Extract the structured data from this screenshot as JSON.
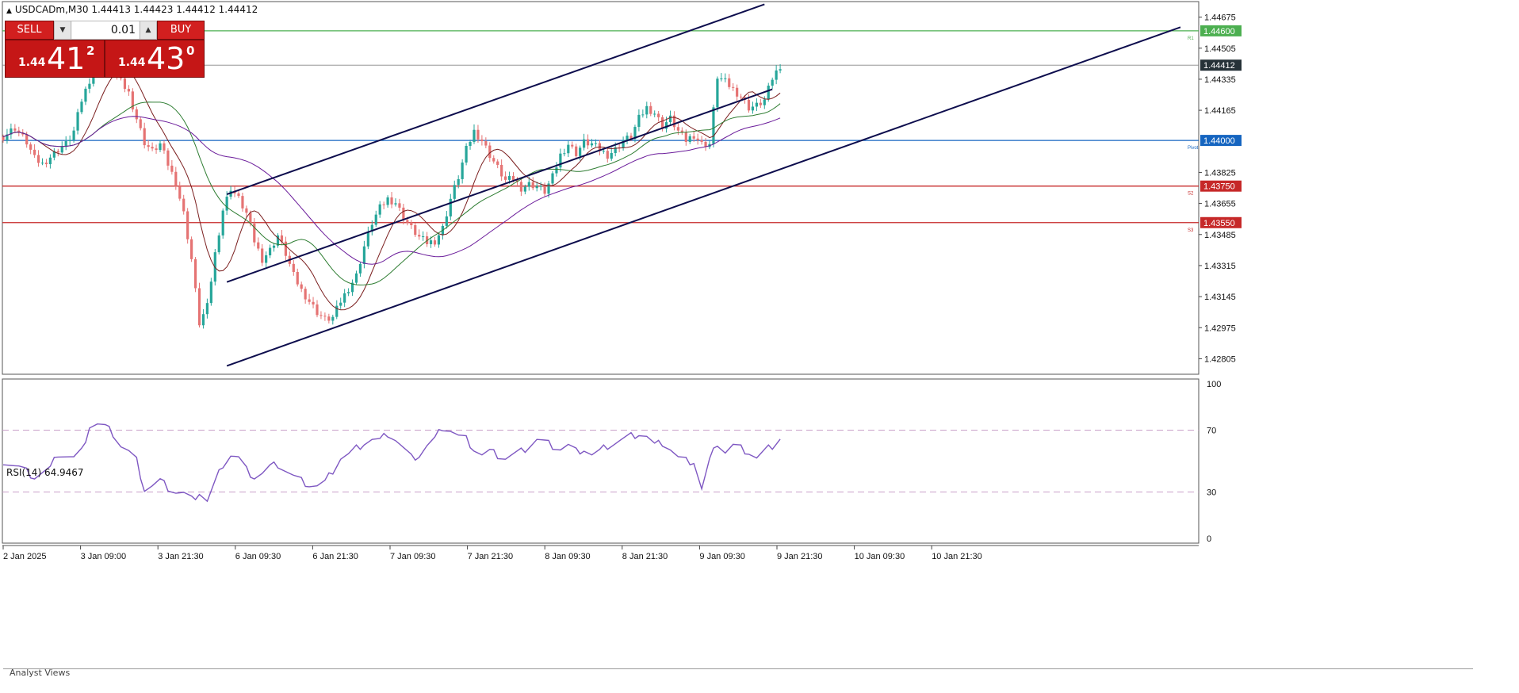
{
  "header": {
    "symbol_info": "USDCADm,M30  1.44413 1.44423 1.44412 1.44412"
  },
  "trade_panel": {
    "sell_label": "SELL",
    "buy_label": "BUY",
    "lot_value": "0.01",
    "sell_price": {
      "prefix": "1.44",
      "big": "41",
      "sup": "2"
    },
    "buy_price": {
      "prefix": "1.44",
      "big": "43",
      "sup": "0"
    }
  },
  "price_scale": {
    "ticks": [
      "1.44675",
      "1.44505",
      "1.44335",
      "1.44165",
      "1.43825",
      "1.43655",
      "1.43485",
      "1.43315",
      "1.43145",
      "1.42975",
      "1.42805"
    ],
    "current_price": "1.44412",
    "levels": [
      {
        "value": 1.446,
        "label": "1.44600",
        "tag": "R1",
        "color": "#4caf50"
      },
      {
        "value": 1.44,
        "label": "1.44000",
        "tag": "Pivot",
        "color": "#1565c0"
      },
      {
        "value": 1.4375,
        "label": "1.43750",
        "tag": "S2",
        "color": "#c62828"
      },
      {
        "value": 1.4355,
        "label": "1.43550",
        "tag": "S3",
        "color": "#c62828"
      }
    ]
  },
  "time_axis": {
    "labels": [
      "2 Jan 2025",
      "3 Jan 09:00",
      "3 Jan 21:30",
      "6 Jan 09:30",
      "6 Jan 21:30",
      "7 Jan 09:30",
      "7 Jan 21:30",
      "8 Jan 09:30",
      "8 Jan 21:30",
      "9 Jan 09:30",
      "9 Jan 21:30",
      "10 Jan 09:30",
      "10 Jan 21:30"
    ]
  },
  "rsi_panel": {
    "title": "RSI(14) 64.9467",
    "ticks": [
      "100",
      "70",
      "30",
      "0"
    ]
  },
  "bottom_tab": "Analyst Views",
  "colors": {
    "bull": "#26a69a",
    "bear": "#e57373",
    "channel": "#0d0d4d",
    "rsi": "#7e57c2",
    "ma1": "#7b1f1f",
    "ma2": "#2e7d32",
    "ma3": "#6a1b9a"
  },
  "chart_data": [
    {
      "type": "candlestick",
      "symbol": "USDCADm",
      "timeframe": "M30",
      "ohlc_last": {
        "open": 1.44413,
        "high": 1.44423,
        "low": 1.44412,
        "close": 1.44412
      },
      "ylim": [
        1.4272,
        1.4476
      ],
      "y_ticks": [
        1.44675,
        1.44505,
        1.44335,
        1.44165,
        1.43825,
        1.43655,
        1.43485,
        1.43315,
        1.43145,
        1.42975,
        1.42805
      ],
      "close_path": [
        [
          0,
          1.4402
        ],
        [
          3,
          1.4407
        ],
        [
          6,
          1.4399
        ],
        [
          8,
          1.439
        ],
        [
          10,
          1.4387
        ],
        [
          12,
          1.4391
        ],
        [
          14,
          1.4395
        ],
        [
          16,
          1.4398
        ],
        [
          18,
          1.4405
        ],
        [
          20,
          1.4422
        ],
        [
          22,
          1.4433
        ],
        [
          24,
          1.4448
        ],
        [
          26,
          1.4444
        ],
        [
          28,
          1.4438
        ],
        [
          30,
          1.4432
        ],
        [
          32,
          1.4426
        ],
        [
          34,
          1.4412
        ],
        [
          36,
          1.4399
        ],
        [
          38,
          1.4394
        ],
        [
          40,
          1.4398
        ],
        [
          42,
          1.4387
        ],
        [
          44,
          1.4377
        ],
        [
          46,
          1.436
        ],
        [
          48,
          1.4335
        ],
        [
          50,
          1.43
        ],
        [
          52,
          1.4309
        ],
        [
          54,
          1.4338
        ],
        [
          56,
          1.4362
        ],
        [
          58,
          1.4374
        ],
        [
          60,
          1.4368
        ],
        [
          62,
          1.436
        ],
        [
          64,
          1.4345
        ],
        [
          66,
          1.4335
        ],
        [
          68,
          1.434
        ],
        [
          70,
          1.4348
        ],
        [
          72,
          1.4338
        ],
        [
          74,
          1.4326
        ],
        [
          76,
          1.4318
        ],
        [
          78,
          1.4312
        ],
        [
          80,
          1.4306
        ],
        [
          82,
          1.4302
        ],
        [
          84,
          1.4303
        ],
        [
          86,
          1.4312
        ],
        [
          88,
          1.4319
        ],
        [
          90,
          1.4326
        ],
        [
          92,
          1.4342
        ],
        [
          94,
          1.4355
        ],
        [
          96,
          1.4363
        ],
        [
          98,
          1.4368
        ],
        [
          100,
          1.4366
        ],
        [
          102,
          1.4358
        ],
        [
          104,
          1.4352
        ],
        [
          106,
          1.4347
        ],
        [
          108,
          1.4344
        ],
        [
          110,
          1.4345
        ],
        [
          112,
          1.4352
        ],
        [
          114,
          1.4368
        ],
        [
          116,
          1.438
        ],
        [
          118,
          1.4395
        ],
        [
          120,
          1.4405
        ],
        [
          122,
          1.44
        ],
        [
          124,
          1.4392
        ],
        [
          126,
          1.4385
        ],
        [
          128,
          1.4378
        ],
        [
          130,
          1.4379
        ],
        [
          132,
          1.4374
        ],
        [
          134,
          1.4376
        ],
        [
          136,
          1.4375
        ],
        [
          138,
          1.4372
        ],
        [
          140,
          1.438
        ],
        [
          142,
          1.4392
        ],
        [
          144,
          1.4398
        ],
        [
          146,
          1.4393
        ],
        [
          148,
          1.4399
        ],
        [
          150,
          1.4398
        ],
        [
          152,
          1.4395
        ],
        [
          154,
          1.4392
        ],
        [
          156,
          1.4395
        ],
        [
          158,
          1.44
        ],
        [
          160,
          1.4402
        ],
        [
          162,
          1.4412
        ],
        [
          164,
          1.4418
        ],
        [
          166,
          1.4415
        ],
        [
          168,
          1.4408
        ],
        [
          170,
          1.4412
        ],
        [
          172,
          1.4405
        ],
        [
          174,
          1.44
        ],
        [
          176,
          1.4403
        ],
        [
          178,
          1.4398
        ],
        [
          180,
          1.4398
        ],
        [
          182,
          1.4435
        ],
        [
          184,
          1.4432
        ],
        [
          186,
          1.4428
        ],
        [
          188,
          1.4424
        ],
        [
          190,
          1.4418
        ],
        [
          192,
          1.4419
        ],
        [
          194,
          1.4422
        ],
        [
          196,
          1.4434
        ],
        [
          198,
          1.4441
        ]
      ],
      "channel": [
        {
          "name": "upper",
          "x": [
            57,
            194
          ],
          "y": [
            1.43705,
            1.44745
          ]
        },
        {
          "name": "middle",
          "x": [
            57,
            196
          ],
          "y": [
            1.43225,
            1.4428
          ]
        },
        {
          "name": "lower",
          "x": [
            57,
            300
          ],
          "y": [
            1.42766,
            1.4462
          ]
        }
      ],
      "hlines": [
        1.446,
        1.44,
        1.4375,
        1.4355
      ],
      "current_price": 1.44412,
      "x_labels": [
        "2 Jan 2025",
        "3 Jan 09:00",
        "3 Jan 21:30",
        "6 Jan 09:30",
        "6 Jan 21:30",
        "7 Jan 09:30",
        "7 Jan 21:30",
        "8 Jan 09:30",
        "8 Jan 21:30",
        "9 Jan 09:30",
        "9 Jan 21:30",
        "10 Jan 09:30",
        "10 Jan 21:30"
      ]
    },
    {
      "type": "line",
      "title": "RSI(14) 64.9467",
      "ylim": [
        0,
        100
      ],
      "y_ticks": [
        100,
        70,
        30,
        0
      ],
      "levels": [
        70,
        30
      ],
      "current": 64.9467,
      "values_path": [
        [
          0,
          50
        ],
        [
          4,
          46
        ],
        [
          8,
          40
        ],
        [
          12,
          45
        ],
        [
          14,
          55
        ],
        [
          18,
          52
        ],
        [
          20,
          56
        ],
        [
          22,
          73
        ],
        [
          24,
          74
        ],
        [
          26,
          72
        ],
        [
          28,
          68
        ],
        [
          30,
          60
        ],
        [
          32,
          56
        ],
        [
          34,
          50
        ],
        [
          36,
          32
        ],
        [
          38,
          34
        ],
        [
          40,
          37
        ],
        [
          42,
          33
        ],
        [
          44,
          30
        ],
        [
          46,
          29
        ],
        [
          48,
          25
        ],
        [
          50,
          30
        ],
        [
          52,
          24
        ],
        [
          54,
          36
        ],
        [
          56,
          48
        ],
        [
          58,
          54
        ],
        [
          60,
          52
        ],
        [
          62,
          44
        ],
        [
          64,
          40
        ],
        [
          66,
          42
        ],
        [
          68,
          46
        ],
        [
          70,
          48
        ],
        [
          72,
          44
        ],
        [
          74,
          40
        ],
        [
          76,
          37
        ],
        [
          78,
          35
        ],
        [
          80,
          34
        ],
        [
          82,
          36
        ],
        [
          84,
          44
        ],
        [
          86,
          52
        ],
        [
          88,
          54
        ],
        [
          90,
          58
        ],
        [
          92,
          62
        ],
        [
          94,
          64
        ],
        [
          96,
          63
        ],
        [
          98,
          68
        ],
        [
          100,
          64
        ],
        [
          102,
          58
        ],
        [
          104,
          52
        ],
        [
          106,
          54
        ],
        [
          108,
          60
        ],
        [
          110,
          64
        ],
        [
          112,
          72
        ],
        [
          114,
          70
        ],
        [
          116,
          66
        ],
        [
          118,
          64
        ],
        [
          120,
          58
        ],
        [
          122,
          54
        ],
        [
          124,
          56
        ],
        [
          126,
          54
        ],
        [
          128,
          52
        ],
        [
          130,
          54
        ],
        [
          132,
          56
        ],
        [
          134,
          60
        ],
        [
          136,
          64
        ],
        [
          138,
          62
        ],
        [
          140,
          60
        ],
        [
          142,
          58
        ],
        [
          144,
          60
        ],
        [
          146,
          56
        ],
        [
          148,
          58
        ],
        [
          150,
          54
        ],
        [
          152,
          56
        ],
        [
          154,
          60
        ],
        [
          156,
          62
        ],
        [
          158,
          64
        ],
        [
          160,
          66
        ],
        [
          162,
          68
        ],
        [
          164,
          66
        ],
        [
          166,
          60
        ],
        [
          168,
          62
        ],
        [
          170,
          58
        ],
        [
          172,
          52
        ],
        [
          174,
          50
        ],
        [
          176,
          50
        ],
        [
          178,
          32
        ],
        [
          180,
          50
        ],
        [
          182,
          62
        ],
        [
          184,
          56
        ],
        [
          186,
          60
        ],
        [
          188,
          58
        ],
        [
          190,
          56
        ],
        [
          192,
          52
        ],
        [
          194,
          56
        ],
        [
          196,
          60
        ],
        [
          198,
          65
        ]
      ]
    }
  ]
}
